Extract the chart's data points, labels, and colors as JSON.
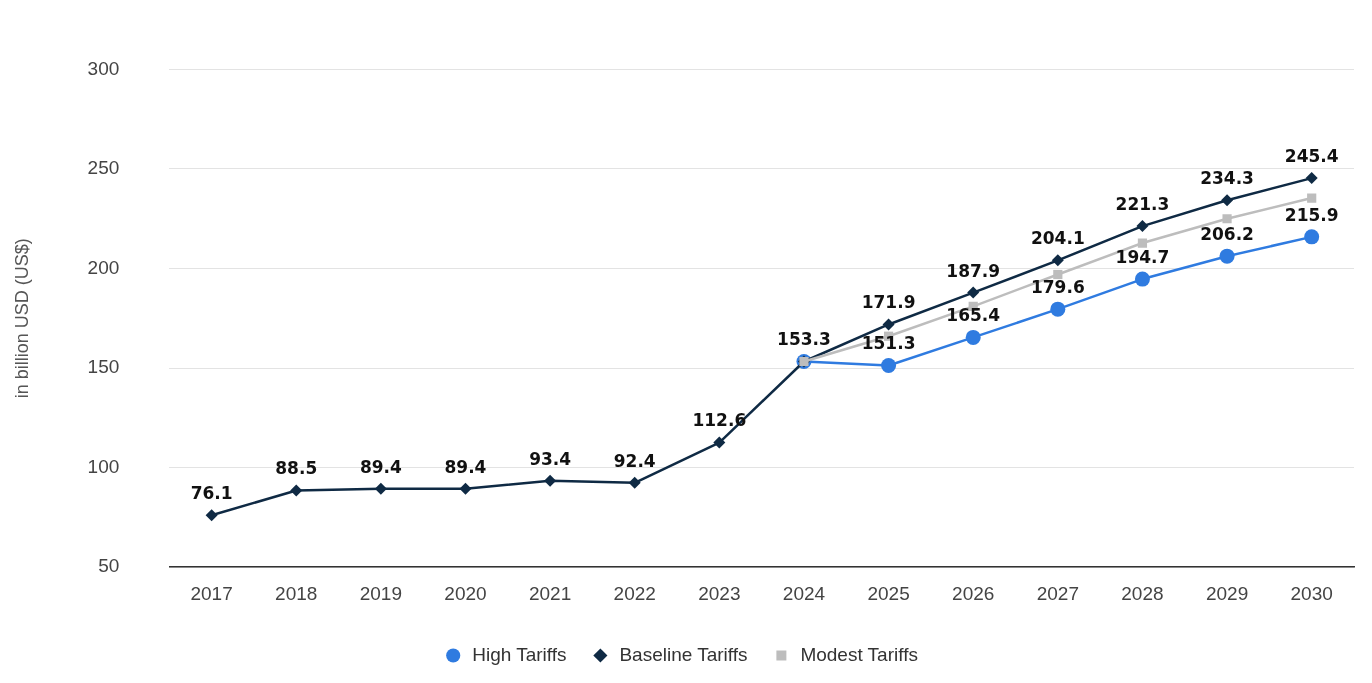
{
  "chart_data": {
    "type": "line",
    "ylabel": "in billion USD (US$)",
    "categories": [
      "2017",
      "2018",
      "2019",
      "2020",
      "2021",
      "2022",
      "2023",
      "2024",
      "2025",
      "2026",
      "2027",
      "2028",
      "2029",
      "2030"
    ],
    "series": [
      {
        "name": "High Tariffs",
        "color": "#2f7be0",
        "marker": "circle",
        "values": [
          null,
          null,
          null,
          null,
          null,
          null,
          null,
          153.3,
          151.3,
          165.4,
          179.6,
          194.7,
          206.2,
          215.9
        ],
        "value_labels": [
          null,
          null,
          null,
          null,
          null,
          null,
          null,
          null,
          "151.3",
          "165.4",
          "179.6",
          "194.7",
          "206.2",
          "215.9"
        ]
      },
      {
        "name": "Baseline Tariffs",
        "color": "#0f2a44",
        "marker": "diamond",
        "values": [
          76.1,
          88.5,
          89.4,
          89.4,
          93.4,
          92.4,
          112.6,
          153.3,
          171.9,
          187.9,
          204.1,
          221.3,
          234.3,
          245.4
        ],
        "value_labels": [
          "76.1",
          "88.5",
          "89.4",
          "89.4",
          "93.4",
          "92.4",
          "112.6",
          "153.3",
          "171.9",
          "187.9",
          "204.1",
          "221.3",
          "234.3",
          "245.4"
        ]
      },
      {
        "name": "Modest Tariffs",
        "color": "#bdbdbd",
        "marker": "square",
        "values": [
          null,
          null,
          null,
          null,
          null,
          null,
          null,
          153.3,
          166,
          181,
          197,
          212.8,
          225,
          235.4
        ]
      }
    ],
    "ylim": [
      50,
      300
    ],
    "yticks": [
      50,
      100,
      150,
      200,
      250,
      300
    ],
    "grid": "y",
    "legend": "bottom",
    "line_style": "solid"
  }
}
